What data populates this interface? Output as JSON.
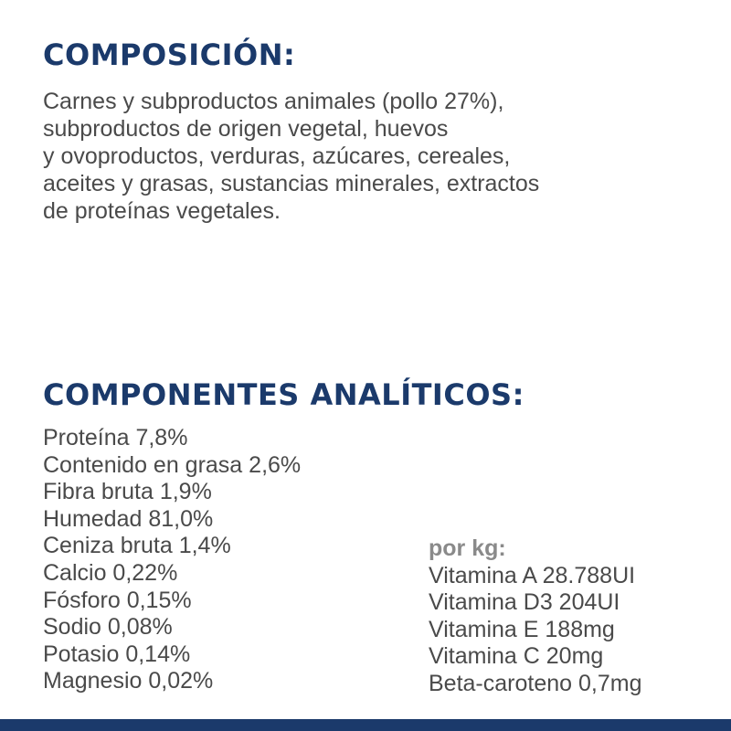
{
  "composition": {
    "heading": "COMPOSICIÓN:",
    "lines": [
      "Carnes y subproductos animales (pollo 27%),",
      "subproductos de origen vegetal, huevos",
      "y ovoproductos, verduras, azúcares, cereales,",
      "aceites y grasas, sustancias minerales, extractos",
      "de proteínas vegetales."
    ]
  },
  "analytical": {
    "heading": "COMPONENTES ANALÍTICOS:",
    "items": [
      "Proteína 7,8%",
      "Contenido en grasa 2,6%",
      "Fibra bruta 1,9%",
      "Humedad 81,0%",
      "Ceniza bruta 1,4%",
      "Calcio 0,22%",
      "Fósforo 0,15%",
      "Sodio 0,08%",
      "Potasio 0,14%",
      "Magnesio 0,02%"
    ]
  },
  "vitamins": {
    "per_kg_label": "por kg:",
    "items": [
      "Vitamina A 28.788UI",
      "Vitamina D3 204UI",
      "Vitamina E 188mg",
      "Vitamina C 20mg",
      "Beta-caroteno 0,7mg"
    ]
  },
  "colors": {
    "heading": "#1b3a6b",
    "body_text": "#4a4a4a",
    "per_kg_label": "#8a8a8a",
    "bottom_bar": "#1b3a6b"
  }
}
